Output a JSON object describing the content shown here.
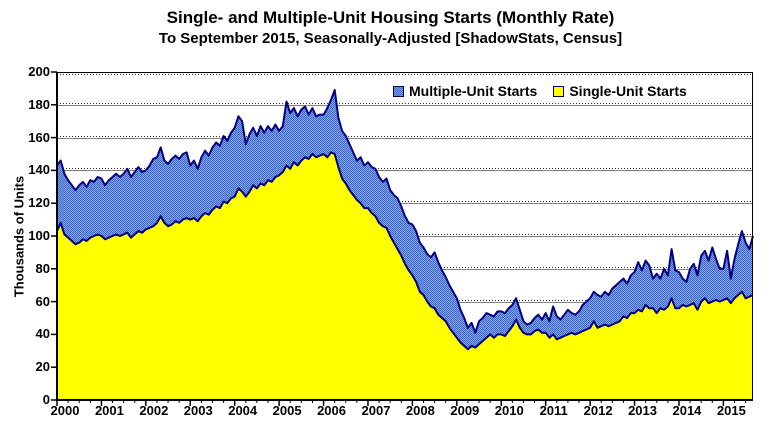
{
  "title": "Single- and Multiple-Unit Housing Starts (Monthly Rate)",
  "subtitle": "To September 2015, Seasonally-Adjusted [ShadowStats, Census]",
  "legend": [
    {
      "label": "Multiple-Unit Starts",
      "swatch": "blue-hatch"
    },
    {
      "label": "Single-Unit Starts",
      "swatch": "yellow"
    }
  ],
  "colors": {
    "single_fill": "#FFFF00",
    "multiple_fill_light": "#7DA2E8",
    "multiple_fill_dark": "#4468C8",
    "area_edge": "#000080",
    "gridline_solid": "#808080",
    "gridline_dotted": "#303030",
    "axis": "#000000"
  },
  "chart_data": {
    "type": "area",
    "stacked": true,
    "title": "Single- and Multiple-Unit Housing Starts (Monthly Rate)",
    "subtitle": "To September 2015, Seasonally-Adjusted [ShadowStats, Census]",
    "xlabel": "",
    "ylabel": "Thousands of Units",
    "ylim": [
      0,
      200
    ],
    "ytick_step": 20,
    "yticks": [
      0,
      20,
      40,
      60,
      80,
      100,
      120,
      140,
      160,
      180,
      200
    ],
    "xticks": [
      "2000",
      "2001",
      "2002",
      "2003",
      "2004",
      "2005",
      "2006",
      "2007",
      "2008",
      "2009",
      "2010",
      "2011",
      "2012",
      "2013",
      "2014",
      "2015"
    ],
    "x_start": "2000-01",
    "x_end": "2015-09",
    "grid": "horizontal",
    "legend_position": "top-inside",
    "units": "thousands of units, monthly rate",
    "series": [
      {
        "name": "Single-Unit Starts",
        "values": [
          103,
          108,
          101,
          99,
          97,
          95,
          96,
          98,
          97,
          99,
          100,
          101,
          100,
          98,
          99,
          100,
          101,
          100,
          101,
          102,
          99,
          101,
          103,
          102,
          104,
          105,
          106,
          108,
          112,
          108,
          106,
          107,
          109,
          108,
          110,
          111,
          110,
          111,
          109,
          112,
          114,
          113,
          116,
          118,
          117,
          121,
          120,
          123,
          124,
          129,
          127,
          124,
          127,
          131,
          129,
          132,
          131,
          134,
          133,
          136,
          137,
          139,
          143,
          141,
          145,
          143,
          146,
          148,
          147,
          150,
          148,
          149,
          150,
          148,
          151,
          150,
          142,
          135,
          132,
          128,
          125,
          122,
          120,
          117,
          117,
          114,
          112,
          108,
          106,
          105,
          100,
          96,
          92,
          88,
          83,
          79,
          76,
          72,
          66,
          64,
          60,
          57,
          56,
          52,
          50,
          48,
          44,
          41,
          38,
          35,
          33,
          31,
          33,
          32,
          34,
          36,
          38,
          40,
          38,
          40,
          40,
          39,
          42,
          45,
          49,
          44,
          41,
          40,
          40,
          42,
          43,
          41,
          41,
          38,
          40,
          37,
          38,
          39,
          40,
          41,
          40,
          41,
          42,
          43,
          44,
          48,
          44,
          45,
          46,
          45,
          46,
          47,
          48,
          51,
          50,
          53,
          53,
          55,
          54,
          58,
          56,
          56,
          53,
          56,
          55,
          57,
          62,
          56,
          56,
          58,
          57,
          58,
          59,
          55,
          60,
          62,
          59,
          60,
          61,
          60,
          61,
          62,
          59,
          62,
          64,
          66,
          62,
          63,
          64
        ]
      },
      {
        "name": "Multiple-Unit Starts",
        "values": [
          40,
          38,
          37,
          35,
          34,
          33,
          35,
          35,
          33,
          35,
          33,
          35,
          35,
          33,
          35,
          36,
          37,
          36,
          37,
          39,
          37,
          38,
          39,
          37,
          36,
          38,
          41,
          40,
          42,
          38,
          38,
          40,
          40,
          39,
          40,
          40,
          33,
          35,
          32,
          36,
          38,
          36,
          38,
          39,
          38,
          40,
          38,
          40,
          42,
          44,
          43,
          32,
          35,
          35,
          32,
          35,
          32,
          33,
          31,
          32,
          27,
          28,
          39,
          34,
          33,
          30,
          31,
          31,
          27,
          28,
          25,
          25,
          24,
          30,
          32,
          39,
          30,
          29,
          29,
          28,
          26,
          24,
          28,
          26,
          28,
          28,
          29,
          28,
          27,
          30,
          28,
          29,
          31,
          30,
          29,
          29,
          31,
          31,
          30,
          29,
          29,
          30,
          34,
          32,
          29,
          27,
          26,
          25,
          24,
          20,
          17,
          13,
          14,
          9,
          14,
          14,
          15,
          12,
          13,
          14,
          14,
          14,
          14,
          13,
          13,
          11,
          7,
          6,
          7,
          8,
          9,
          8,
          12,
          10,
          17,
          14,
          11,
          13,
          15,
          12,
          12,
          13,
          16,
          17,
          18,
          18,
          20,
          18,
          20,
          19,
          22,
          23,
          24,
          23,
          21,
          23,
          25,
          29,
          25,
          27,
          26,
          18,
          24,
          18,
          25,
          19,
          30,
          23,
          22,
          16,
          15,
          22,
          24,
          21,
          28,
          29,
          26,
          33,
          25,
          20,
          19,
          29,
          15,
          24,
          31,
          37,
          34,
          29,
          36
        ]
      }
    ]
  }
}
